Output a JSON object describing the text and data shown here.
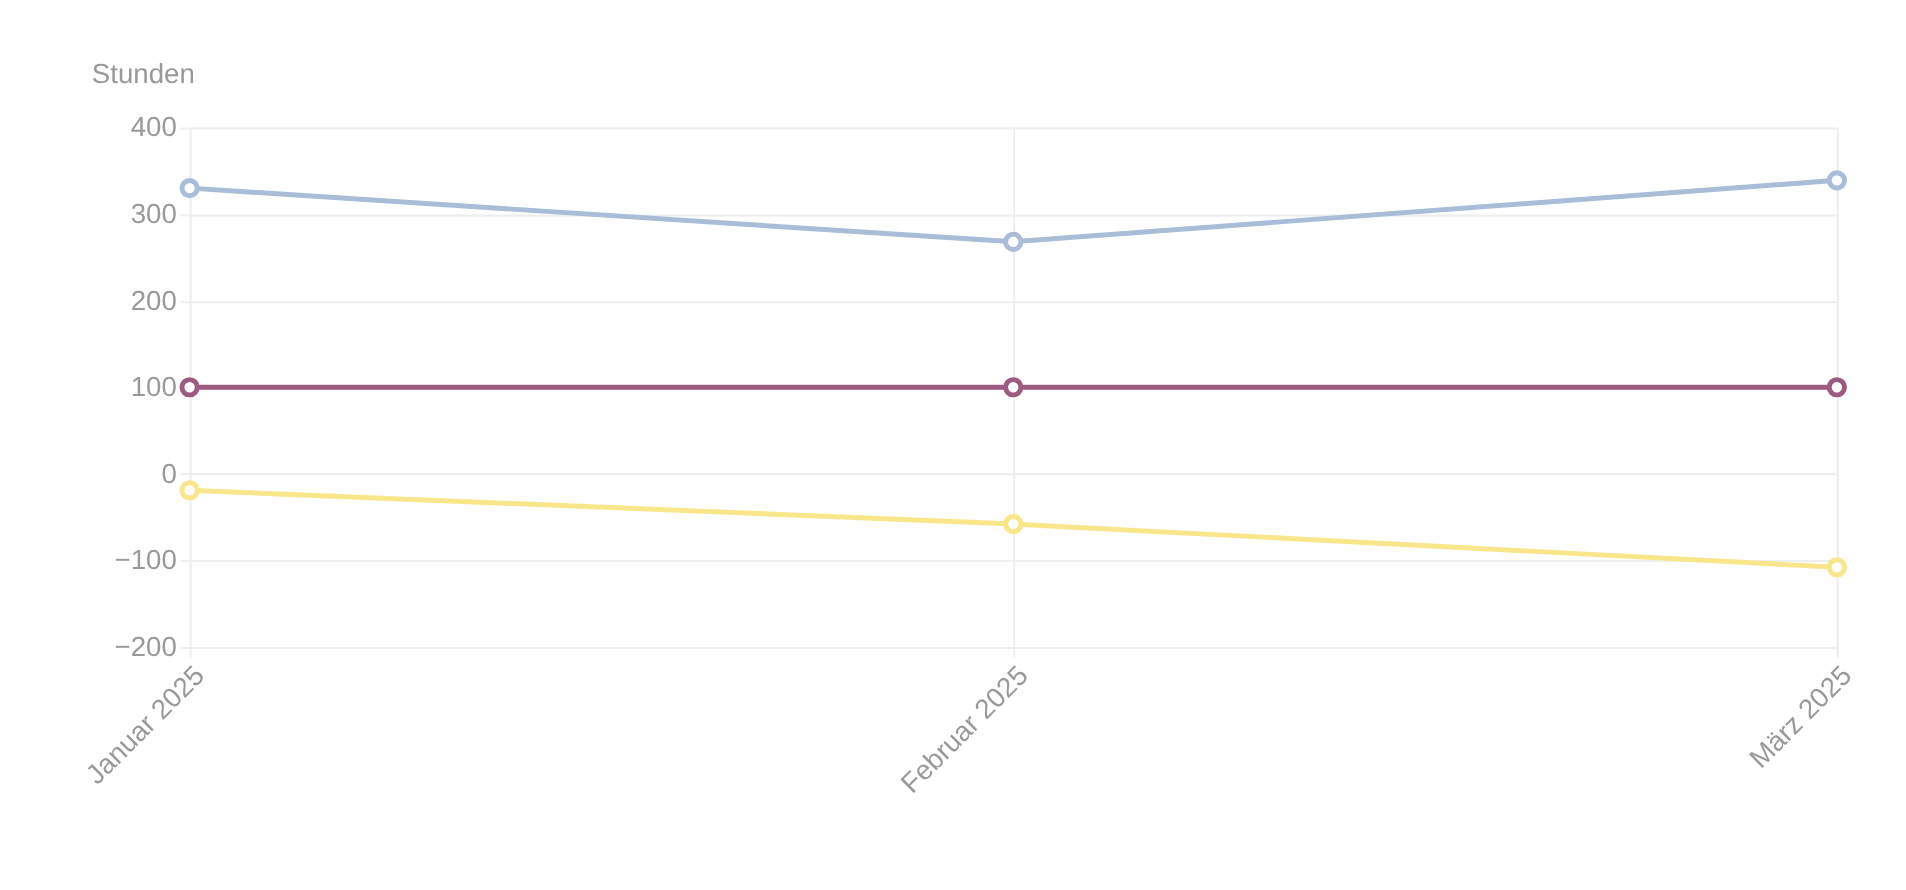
{
  "chart_data": {
    "type": "line",
    "ylabel": "Stunden",
    "categories": [
      "Januar 2025",
      "Februar 2025",
      "März 2025"
    ],
    "ylim": [
      -200,
      400
    ],
    "yticks": [
      -200,
      -100,
      0,
      100,
      200,
      300,
      400
    ],
    "grid": true,
    "marker": "circle",
    "line_style": "solid",
    "series": [
      {
        "color": "#a9bcd8",
        "values": [
          330,
          268,
          339
        ]
      },
      {
        "color": "#9c5b80",
        "values": [
          100,
          100,
          100
        ]
      },
      {
        "color": "#fae68a",
        "values": [
          -19,
          -58,
          -108
        ]
      }
    ]
  }
}
